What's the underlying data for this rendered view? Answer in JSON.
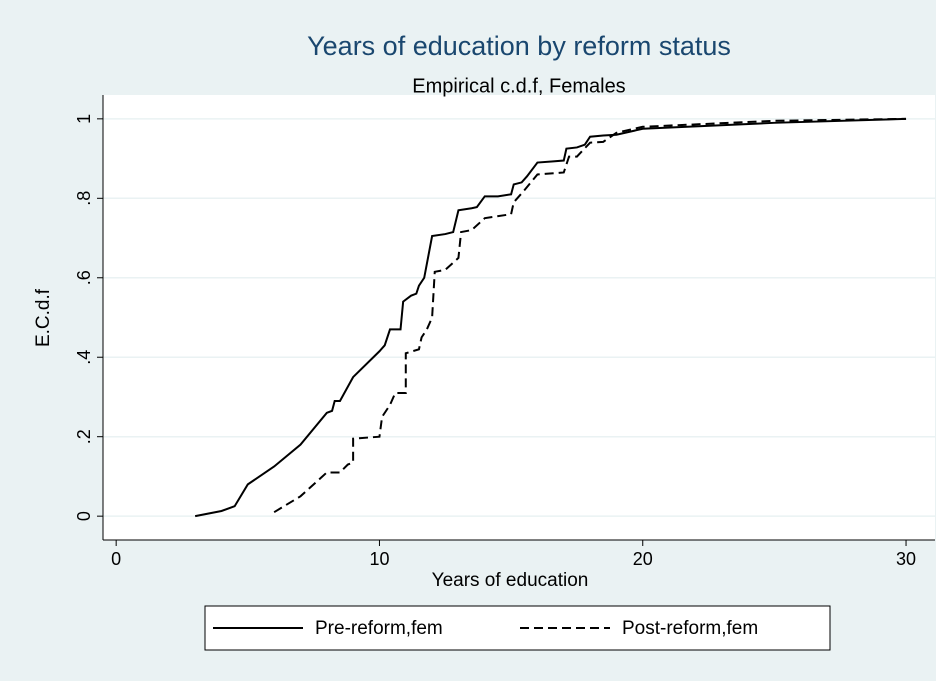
{
  "chart_data": {
    "type": "line",
    "title": "Years of education by reform status",
    "subtitle": "Empirical c.d.f, Females",
    "xlabel": "Years of education",
    "ylabel": "E.C.d.f",
    "xlim": [
      -0.5,
      31.1
    ],
    "ylim": [
      -0.06,
      1.06
    ],
    "xticks": [
      0,
      10,
      20,
      30
    ],
    "yticks": [
      0,
      {
        "value": 0.2,
        "label": ".2"
      },
      {
        "value": 0.4,
        "label": ".4"
      },
      {
        "value": 0.6,
        "label": ".6"
      },
      {
        "value": 0.8,
        "label": ".8"
      },
      1
    ],
    "grid": true,
    "legend": "bottom",
    "series": [
      {
        "name": "Pre-reform,fem",
        "color": "#000000",
        "line_style": "solid",
        "x": [
          3,
          4,
          4.5,
          5,
          6,
          7,
          8,
          8.2,
          8.3,
          8.5,
          9,
          10,
          10.2,
          10.4,
          10.8,
          10.9,
          11.2,
          11.4,
          11.5,
          11.7,
          12,
          12.5,
          12.8,
          13,
          13.5,
          13.7,
          14,
          14.5,
          15,
          15.1,
          15.4,
          15.6,
          16,
          16.6,
          17,
          17.1,
          17.5,
          17.8,
          18,
          18.5,
          19,
          20,
          25,
          30
        ],
        "values": [
          0,
          0.013,
          0.025,
          0.08,
          0.125,
          0.18,
          0.26,
          0.265,
          0.29,
          0.29,
          0.35,
          0.415,
          0.43,
          0.47,
          0.47,
          0.54,
          0.555,
          0.56,
          0.58,
          0.6,
          0.705,
          0.71,
          0.715,
          0.77,
          0.775,
          0.778,
          0.805,
          0.805,
          0.81,
          0.835,
          0.84,
          0.855,
          0.89,
          0.893,
          0.895,
          0.925,
          0.928,
          0.935,
          0.955,
          0.958,
          0.96,
          0.975,
          0.99,
          1
        ]
      },
      {
        "name": "Post-reform,fem",
        "color": "#000000",
        "line_style": "dashed",
        "x": [
          6,
          7,
          8,
          8.5,
          8.8,
          9,
          9,
          10,
          10.1,
          10.4,
          10.6,
          11,
          11,
          11.5,
          11.6,
          11.8,
          12,
          12.1,
          12.5,
          13,
          13.1,
          13.5,
          14,
          15,
          15.1,
          15.5,
          16,
          17,
          17.2,
          17.5,
          18,
          18.5,
          19,
          20,
          25,
          30
        ],
        "values": [
          0.01,
          0.05,
          0.11,
          0.11,
          0.13,
          0.135,
          0.195,
          0.2,
          0.25,
          0.28,
          0.31,
          0.31,
          0.41,
          0.42,
          0.45,
          0.47,
          0.5,
          0.615,
          0.62,
          0.65,
          0.715,
          0.72,
          0.75,
          0.76,
          0.79,
          0.82,
          0.86,
          0.865,
          0.905,
          0.905,
          0.94,
          0.942,
          0.965,
          0.98,
          0.995,
          1
        ]
      }
    ]
  }
}
